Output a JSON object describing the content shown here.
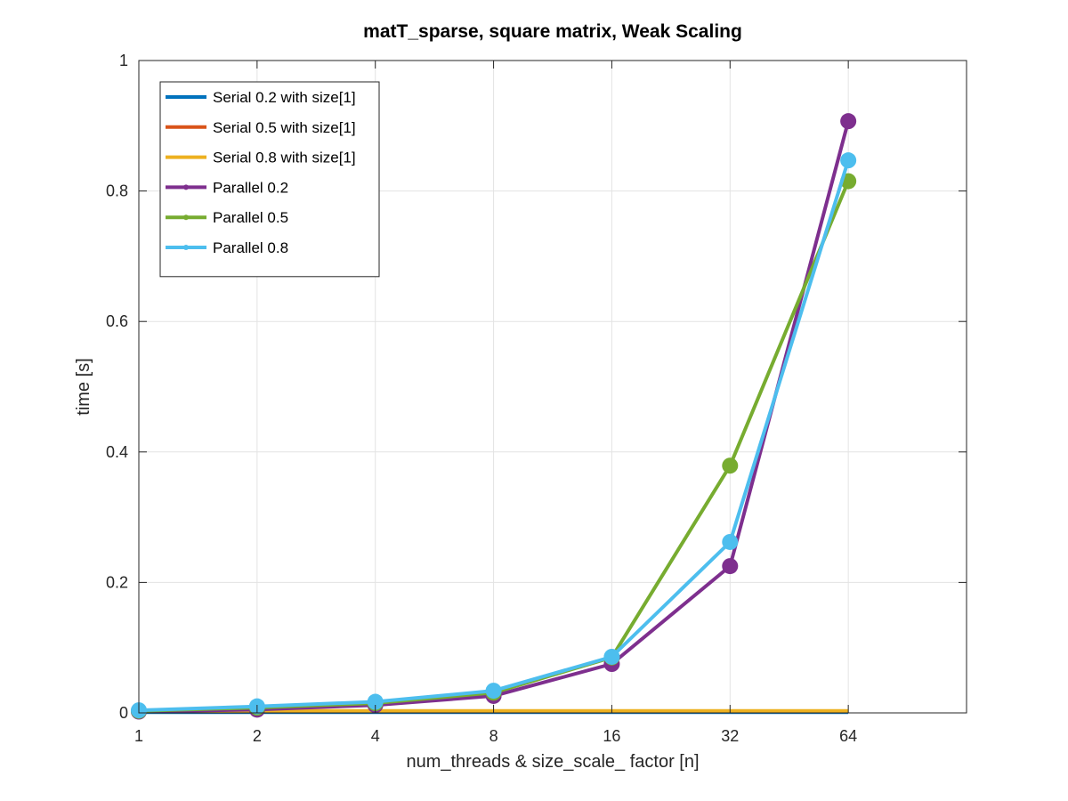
{
  "chart_data": {
    "type": "line",
    "title": "matT_sparse, square matrix, Weak Scaling",
    "xlabel": "num_threads & size_scale_ factor [n]",
    "ylabel": "time [s]",
    "x_scale": "log2",
    "x": [
      1,
      2,
      4,
      8,
      16,
      32,
      64
    ],
    "x_tick_labels": [
      "1",
      "2",
      "4",
      "8",
      "16",
      "32",
      "64"
    ],
    "xlim": [
      1,
      128
    ],
    "ylim": [
      0,
      1
    ],
    "y_ticks": [
      0,
      0.2,
      0.4,
      0.6,
      0.8,
      1
    ],
    "y_tick_labels": [
      "0",
      "0.2",
      "0.4",
      "0.6",
      "0.8",
      "1"
    ],
    "grid": true,
    "legend_position": "top-left",
    "series": [
      {
        "name": "Serial 0.2 with size[1]",
        "color": "#0072bd",
        "marker": false,
        "values": [
          0.001,
          0.001,
          0.001,
          0.001,
          0.001,
          0.001,
          0.001
        ]
      },
      {
        "name": "Serial 0.5 with size[1]",
        "color": "#d95319",
        "marker": false,
        "values": [
          0.002,
          0.002,
          0.002,
          0.002,
          0.002,
          0.002,
          0.002
        ]
      },
      {
        "name": "Serial 0.8 with size[1]",
        "color": "#edb120",
        "marker": false,
        "values": [
          0.003,
          0.003,
          0.003,
          0.003,
          0.003,
          0.003,
          0.003
        ]
      },
      {
        "name": "Parallel 0.2",
        "color": "#7e2f8e",
        "marker": true,
        "values": [
          0.002,
          0.005,
          0.012,
          0.026,
          0.075,
          0.225,
          0.907
        ]
      },
      {
        "name": "Parallel 0.5",
        "color": "#77ac30",
        "marker": true,
        "values": [
          0.003,
          0.008,
          0.015,
          0.031,
          0.085,
          0.379,
          0.815
        ]
      },
      {
        "name": "Parallel 0.8",
        "color": "#4dbeee",
        "marker": true,
        "values": [
          0.004,
          0.01,
          0.017,
          0.034,
          0.086,
          0.262,
          0.847
        ]
      }
    ]
  }
}
